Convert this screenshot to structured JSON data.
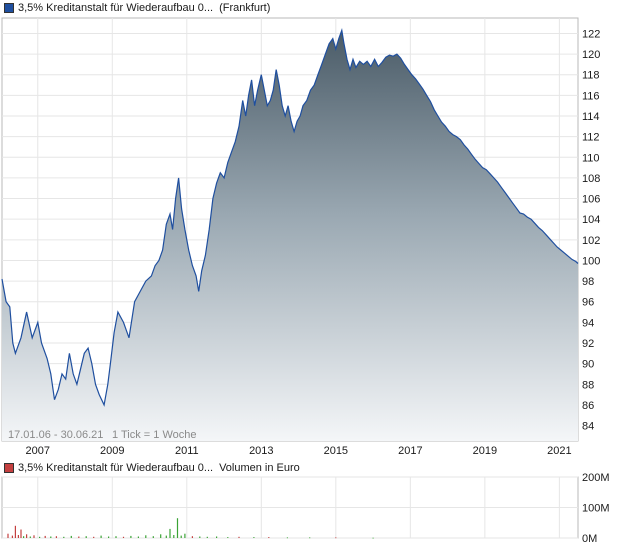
{
  "legend": {
    "price": {
      "label": "3,5% Kreditanstalt für Wiederaufbau 0...",
      "exchange": "(Frankfurt)",
      "color": "#1f4f9f"
    },
    "volume": {
      "label": "3,5% Kreditanstalt für Wiederaufbau 0...",
      "unit": "Volumen in Euro",
      "color": "#c44040"
    }
  },
  "info": {
    "range": "17.01.06 - 30.06.21",
    "tick": "1 Tick = 1 Woche"
  },
  "chart_data": [
    {
      "type": "area",
      "title": "",
      "xlabel": "",
      "ylabel": "",
      "xlim": [
        2006.04,
        2021.5
      ],
      "ylim": [
        82.5,
        123.5
      ],
      "grid": true,
      "x_ticks": [
        2007,
        2009,
        2011,
        2013,
        2015,
        2017,
        2019,
        2021
      ],
      "y_ticks": [
        84,
        86,
        88,
        90,
        92,
        94,
        96,
        98,
        100,
        102,
        104,
        106,
        108,
        110,
        112,
        114,
        116,
        118,
        120,
        122
      ],
      "series": [
        {
          "color": "#1f4f9f",
          "points": [
            [
              2006.04,
              98.2
            ],
            [
              2006.15,
              96.0
            ],
            [
              2006.25,
              95.5
            ],
            [
              2006.33,
              92.0
            ],
            [
              2006.4,
              91.0
            ],
            [
              2006.55,
              92.5
            ],
            [
              2006.7,
              95.0
            ],
            [
              2006.85,
              92.5
            ],
            [
              2007.0,
              94.0
            ],
            [
              2007.1,
              92.0
            ],
            [
              2007.25,
              90.5
            ],
            [
              2007.35,
              89.0
            ],
            [
              2007.45,
              86.5
            ],
            [
              2007.55,
              87.5
            ],
            [
              2007.65,
              89.0
            ],
            [
              2007.75,
              88.5
            ],
            [
              2007.85,
              91.0
            ],
            [
              2007.95,
              89.0
            ],
            [
              2008.05,
              88.0
            ],
            [
              2008.15,
              89.5
            ],
            [
              2008.25,
              91.0
            ],
            [
              2008.35,
              91.5
            ],
            [
              2008.45,
              90.0
            ],
            [
              2008.55,
              88.0
            ],
            [
              2008.65,
              87.0
            ],
            [
              2008.78,
              86.0
            ],
            [
              2008.88,
              88.0
            ],
            [
              2008.95,
              90.0
            ],
            [
              2009.05,
              93.0
            ],
            [
              2009.15,
              95.0
            ],
            [
              2009.3,
              94.0
            ],
            [
              2009.45,
              92.5
            ],
            [
              2009.6,
              96.0
            ],
            [
              2009.75,
              97.0
            ],
            [
              2009.9,
              98.0
            ],
            [
              2010.05,
              98.5
            ],
            [
              2010.15,
              99.5
            ],
            [
              2010.25,
              100.0
            ],
            [
              2010.35,
              101.0
            ],
            [
              2010.45,
              103.5
            ],
            [
              2010.55,
              104.5
            ],
            [
              2010.62,
              103.0
            ],
            [
              2010.7,
              106.0
            ],
            [
              2010.78,
              108.0
            ],
            [
              2010.86,
              105.0
            ],
            [
              2010.95,
              103.0
            ],
            [
              2011.05,
              101.0
            ],
            [
              2011.15,
              99.5
            ],
            [
              2011.25,
              98.5
            ],
            [
              2011.32,
              97.0
            ],
            [
              2011.4,
              99.0
            ],
            [
              2011.5,
              100.5
            ],
            [
              2011.6,
              103.0
            ],
            [
              2011.7,
              106.0
            ],
            [
              2011.8,
              107.5
            ],
            [
              2011.9,
              108.5
            ],
            [
              2012.0,
              108.0
            ],
            [
              2012.1,
              109.5
            ],
            [
              2012.2,
              110.5
            ],
            [
              2012.3,
              111.5
            ],
            [
              2012.4,
              113.0
            ],
            [
              2012.5,
              115.5
            ],
            [
              2012.58,
              114.0
            ],
            [
              2012.66,
              116.0
            ],
            [
              2012.74,
              117.5
            ],
            [
              2012.82,
              115.0
            ],
            [
              2012.9,
              116.5
            ],
            [
              2013.0,
              118.0
            ],
            [
              2013.08,
              116.5
            ],
            [
              2013.16,
              115.0
            ],
            [
              2013.24,
              115.5
            ],
            [
              2013.32,
              116.5
            ],
            [
              2013.4,
              118.5
            ],
            [
              2013.48,
              117.0
            ],
            [
              2013.56,
              115.0
            ],
            [
              2013.64,
              114.0
            ],
            [
              2013.72,
              115.0
            ],
            [
              2013.8,
              113.5
            ],
            [
              2013.88,
              112.5
            ],
            [
              2013.96,
              113.5
            ],
            [
              2014.04,
              114.0
            ],
            [
              2014.12,
              115.0
            ],
            [
              2014.22,
              115.5
            ],
            [
              2014.32,
              116.5
            ],
            [
              2014.42,
              117.0
            ],
            [
              2014.52,
              118.0
            ],
            [
              2014.62,
              119.0
            ],
            [
              2014.72,
              120.0
            ],
            [
              2014.82,
              121.0
            ],
            [
              2014.92,
              121.5
            ],
            [
              2015.0,
              120.5
            ],
            [
              2015.08,
              121.5
            ],
            [
              2015.16,
              122.3
            ],
            [
              2015.22,
              121.0
            ],
            [
              2015.3,
              119.5
            ],
            [
              2015.38,
              118.5
            ],
            [
              2015.46,
              119.5
            ],
            [
              2015.54,
              118.7
            ],
            [
              2015.64,
              119.3
            ],
            [
              2015.74,
              119.0
            ],
            [
              2015.84,
              119.3
            ],
            [
              2015.94,
              118.8
            ],
            [
              2016.04,
              119.5
            ],
            [
              2016.14,
              118.8
            ],
            [
              2016.24,
              119.2
            ],
            [
              2016.34,
              119.7
            ],
            [
              2016.44,
              119.9
            ],
            [
              2016.54,
              119.8
            ],
            [
              2016.64,
              120.0
            ],
            [
              2016.74,
              119.6
            ],
            [
              2016.84,
              119.0
            ],
            [
              2016.94,
              118.5
            ],
            [
              2017.04,
              118.0
            ],
            [
              2017.14,
              117.6
            ],
            [
              2017.24,
              117.1
            ],
            [
              2017.34,
              116.6
            ],
            [
              2017.44,
              116.0
            ],
            [
              2017.54,
              115.4
            ],
            [
              2017.64,
              114.6
            ],
            [
              2017.74,
              114.0
            ],
            [
              2017.84,
              113.4
            ],
            [
              2017.94,
              113.0
            ],
            [
              2018.04,
              112.5
            ],
            [
              2018.14,
              112.2
            ],
            [
              2018.24,
              112.0
            ],
            [
              2018.34,
              111.7
            ],
            [
              2018.44,
              111.2
            ],
            [
              2018.54,
              110.8
            ],
            [
              2018.64,
              110.3
            ],
            [
              2018.74,
              109.8
            ],
            [
              2018.84,
              109.4
            ],
            [
              2018.94,
              109.0
            ],
            [
              2019.04,
              108.8
            ],
            [
              2019.14,
              108.4
            ],
            [
              2019.24,
              108.0
            ],
            [
              2019.34,
              107.6
            ],
            [
              2019.44,
              107.1
            ],
            [
              2019.54,
              106.6
            ],
            [
              2019.64,
              106.1
            ],
            [
              2019.74,
              105.6
            ],
            [
              2019.84,
              105.1
            ],
            [
              2019.94,
              104.6
            ],
            [
              2020.04,
              104.5
            ],
            [
              2020.14,
              104.2
            ],
            [
              2020.24,
              104.0
            ],
            [
              2020.34,
              103.6
            ],
            [
              2020.44,
              103.2
            ],
            [
              2020.54,
              102.9
            ],
            [
              2020.64,
              102.5
            ],
            [
              2020.74,
              102.1
            ],
            [
              2020.84,
              101.7
            ],
            [
              2020.94,
              101.3
            ],
            [
              2021.04,
              101.0
            ],
            [
              2021.14,
              100.7
            ],
            [
              2021.24,
              100.4
            ],
            [
              2021.34,
              100.1
            ],
            [
              2021.44,
              99.9
            ],
            [
              2021.5,
              99.7
            ]
          ]
        }
      ]
    },
    {
      "type": "bar",
      "title": "",
      "ylim": [
        0,
        200
      ],
      "y_ticks": [
        0,
        100,
        200
      ],
      "y_tick_labels": [
        "0M",
        "100M",
        "200M"
      ],
      "x_ticks": [
        2007,
        2009,
        2011,
        2013,
        2015,
        2017,
        2019,
        2021
      ],
      "grid": true,
      "colors": {
        "up": "#3aa335",
        "down": "#c44040"
      },
      "bars": [
        [
          2006.2,
          14,
          "down"
        ],
        [
          2006.32,
          8,
          "down"
        ],
        [
          2006.4,
          40,
          "down"
        ],
        [
          2006.48,
          10,
          "down"
        ],
        [
          2006.55,
          28,
          "down"
        ],
        [
          2006.62,
          6,
          "up"
        ],
        [
          2006.7,
          12,
          "down"
        ],
        [
          2006.8,
          5,
          "up"
        ],
        [
          2006.9,
          9,
          "down"
        ],
        [
          2007.05,
          4,
          "up"
        ],
        [
          2007.2,
          7,
          "down"
        ],
        [
          2007.35,
          5,
          "up"
        ],
        [
          2007.5,
          6,
          "down"
        ],
        [
          2007.7,
          4,
          "up"
        ],
        [
          2007.9,
          7,
          "up"
        ],
        [
          2008.1,
          5,
          "down"
        ],
        [
          2008.3,
          6,
          "up"
        ],
        [
          2008.5,
          4,
          "down"
        ],
        [
          2008.7,
          8,
          "up"
        ],
        [
          2008.9,
          5,
          "up"
        ],
        [
          2009.1,
          6,
          "up"
        ],
        [
          2009.3,
          4,
          "down"
        ],
        [
          2009.5,
          7,
          "up"
        ],
        [
          2009.7,
          5,
          "up"
        ],
        [
          2009.9,
          9,
          "up"
        ],
        [
          2010.1,
          6,
          "up"
        ],
        [
          2010.3,
          12,
          "up"
        ],
        [
          2010.45,
          8,
          "up"
        ],
        [
          2010.55,
          30,
          "up"
        ],
        [
          2010.65,
          10,
          "up"
        ],
        [
          2010.75,
          65,
          "up"
        ],
        [
          2010.85,
          8,
          "up"
        ],
        [
          2010.95,
          14,
          "up"
        ],
        [
          2011.15,
          6,
          "down"
        ],
        [
          2011.35,
          5,
          "up"
        ],
        [
          2011.55,
          4,
          "up"
        ],
        [
          2011.8,
          5,
          "up"
        ],
        [
          2012.1,
          3,
          "up"
        ],
        [
          2012.4,
          4,
          "down"
        ],
        [
          2012.8,
          3,
          "up"
        ],
        [
          2013.2,
          3,
          "down"
        ],
        [
          2013.7,
          2,
          "up"
        ],
        [
          2014.3,
          2,
          "up"
        ],
        [
          2015.0,
          2,
          "down"
        ],
        [
          2016.0,
          1,
          "up"
        ]
      ]
    }
  ]
}
